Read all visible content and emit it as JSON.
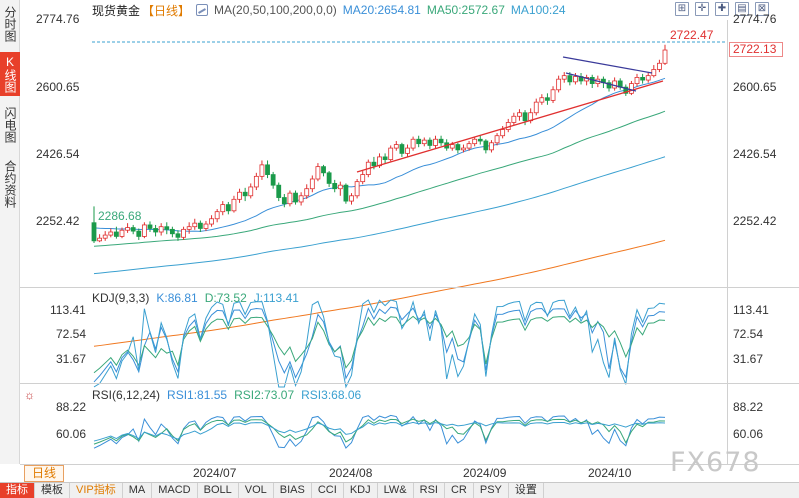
{
  "sidebar": {
    "tabs": [
      {
        "label": "分时图",
        "active": false
      },
      {
        "label": "K线图",
        "active": true
      },
      {
        "label": "闪电图",
        "active": false
      },
      {
        "label": "合约资料",
        "active": false
      }
    ]
  },
  "header": {
    "symbol": "现货黄金",
    "period": "【日线】",
    "ma_params": "MA(20,50,100,200,0,0)",
    "ma20": "MA20:2654.81",
    "ma50": "MA50:2572.67",
    "ma100": "MA100:24"
  },
  "toolbar_buttons": [
    "⊞",
    "✛",
    "✚",
    "▤",
    "⊠"
  ],
  "price_axis": {
    "labels": [
      "2774.76",
      "2600.65",
      "2426.54",
      "2252.42"
    ],
    "current_price": "2722.13",
    "last_label": "2722.47",
    "low_label": "2286.68"
  },
  "kdj": {
    "title": "KDJ(9,3,3)",
    "k": "K:86.81",
    "d": "D:73.52",
    "j": "J:113.41",
    "axis": [
      "113.41",
      "72.54",
      "31.67"
    ]
  },
  "rsi": {
    "title": "RSI(6,12,24)",
    "rsi1": "RSI1:81.55",
    "rsi2": "RSI2:73.07",
    "rsi3": "RSI3:68.06",
    "axis": [
      "88.22",
      "60.06"
    ]
  },
  "dates": [
    "2024/07",
    "2024/08",
    "2024/09",
    "2024/10"
  ],
  "period_tab": "日线",
  "watermark": "FX678",
  "bottom_toolbar": [
    "指标",
    "模板",
    "VIP指标",
    "MA",
    "MACD",
    "BOLL",
    "VOL",
    "BIAS",
    "CCI",
    "KDJ",
    "LW&",
    "RSI",
    "CR",
    "PSY",
    "设置"
  ],
  "colors": {
    "up": "#e03030",
    "down": "#1a9a4a",
    "ma20": "#3a8fd8",
    "ma50": "#3aa87a",
    "ma100": "#3aa0d0",
    "ma200": "#f07820",
    "trendline": "#e03030",
    "channel": "#3a3a9a"
  },
  "chart_data": {
    "type": "candlestick",
    "candles": [
      [
        2331,
        2290,
        2368,
        2285
      ],
      [
        2290,
        2296,
        2305,
        2287
      ],
      [
        2296,
        2303,
        2312,
        2290
      ],
      [
        2303,
        2310,
        2318,
        2298
      ],
      [
        2310,
        2300,
        2322,
        2295
      ],
      [
        2300,
        2314,
        2320,
        2296
      ],
      [
        2314,
        2320,
        2330,
        2308
      ],
      [
        2320,
        2312,
        2326,
        2305
      ],
      [
        2312,
        2300,
        2318,
        2292
      ],
      [
        2300,
        2326,
        2332,
        2296
      ],
      [
        2326,
        2318,
        2334,
        2310
      ],
      [
        2318,
        2310,
        2326,
        2300
      ],
      [
        2310,
        2322,
        2330,
        2302
      ],
      [
        2322,
        2316,
        2332,
        2305
      ],
      [
        2316,
        2306,
        2322,
        2298
      ],
      [
        2306,
        2298,
        2314,
        2290
      ],
      [
        2298,
        2316,
        2322,
        2292
      ],
      [
        2316,
        2322,
        2332,
        2306
      ],
      [
        2322,
        2330,
        2340,
        2315
      ],
      [
        2330,
        2318,
        2336,
        2310
      ],
      [
        2318,
        2328,
        2335,
        2312
      ],
      [
        2328,
        2340,
        2348,
        2322
      ],
      [
        2340,
        2356,
        2362,
        2332
      ],
      [
        2356,
        2372,
        2380,
        2348
      ],
      [
        2372,
        2358,
        2378,
        2350
      ],
      [
        2358,
        2384,
        2392,
        2354
      ],
      [
        2384,
        2400,
        2408,
        2376
      ],
      [
        2400,
        2392,
        2410,
        2380
      ],
      [
        2392,
        2412,
        2420,
        2386
      ],
      [
        2412,
        2436,
        2444,
        2405
      ],
      [
        2436,
        2462,
        2472,
        2428
      ],
      [
        2462,
        2440,
        2472,
        2432
      ],
      [
        2440,
        2416,
        2446,
        2408
      ],
      [
        2416,
        2388,
        2422,
        2380
      ],
      [
        2388,
        2374,
        2396,
        2366
      ],
      [
        2374,
        2398,
        2404,
        2368
      ],
      [
        2398,
        2378,
        2404,
        2372
      ],
      [
        2378,
        2392,
        2400,
        2370
      ],
      [
        2392,
        2408,
        2418,
        2385
      ],
      [
        2408,
        2430,
        2438,
        2400
      ],
      [
        2430,
        2458,
        2466,
        2425
      ],
      [
        2458,
        2444,
        2462,
        2436
      ],
      [
        2444,
        2420,
        2448,
        2412
      ],
      [
        2420,
        2408,
        2428,
        2400
      ],
      [
        2408,
        2416,
        2424,
        2392
      ],
      [
        2416,
        2380,
        2420,
        2374
      ],
      [
        2380,
        2392,
        2398,
        2372
      ],
      [
        2392,
        2424,
        2430,
        2386
      ],
      [
        2424,
        2440,
        2448,
        2418
      ],
      [
        2440,
        2468,
        2474,
        2434
      ],
      [
        2468,
        2460,
        2480,
        2452
      ],
      [
        2460,
        2480,
        2488,
        2455
      ],
      [
        2480,
        2474,
        2488,
        2466
      ],
      [
        2474,
        2500,
        2506,
        2470
      ],
      [
        2500,
        2508,
        2516,
        2494
      ],
      [
        2508,
        2488,
        2512,
        2480
      ],
      [
        2488,
        2500,
        2508,
        2480
      ],
      [
        2500,
        2520,
        2526,
        2494
      ],
      [
        2520,
        2510,
        2528,
        2502
      ],
      [
        2510,
        2518,
        2524,
        2504
      ],
      [
        2518,
        2506,
        2524,
        2498
      ],
      [
        2506,
        2520,
        2528,
        2500
      ],
      [
        2520,
        2512,
        2528,
        2505
      ],
      [
        2512,
        2500,
        2520,
        2494
      ],
      [
        2500,
        2508,
        2514,
        2494
      ],
      [
        2508,
        2496,
        2512,
        2488
      ],
      [
        2496,
        2500,
        2508,
        2490
      ],
      [
        2500,
        2510,
        2516,
        2494
      ],
      [
        2510,
        2520,
        2526,
        2504
      ],
      [
        2520,
        2516,
        2528,
        2508
      ],
      [
        2516,
        2496,
        2520,
        2488
      ],
      [
        2496,
        2512,
        2518,
        2490
      ],
      [
        2512,
        2528,
        2534,
        2506
      ],
      [
        2528,
        2542,
        2550,
        2522
      ],
      [
        2542,
        2558,
        2566,
        2536
      ],
      [
        2558,
        2572,
        2580,
        2552
      ],
      [
        2572,
        2580,
        2588,
        2562
      ],
      [
        2580,
        2562,
        2586,
        2552
      ],
      [
        2562,
        2580,
        2590,
        2556
      ],
      [
        2580,
        2604,
        2612,
        2574
      ],
      [
        2604,
        2614,
        2622,
        2598
      ],
      [
        2614,
        2608,
        2624,
        2598
      ],
      [
        2608,
        2632,
        2640,
        2602
      ],
      [
        2632,
        2656,
        2664,
        2626
      ],
      [
        2656,
        2664,
        2672,
        2648
      ],
      [
        2664,
        2650,
        2672,
        2642
      ],
      [
        2650,
        2662,
        2670,
        2644
      ],
      [
        2662,
        2652,
        2670,
        2644
      ],
      [
        2652,
        2660,
        2666,
        2642
      ],
      [
        2660,
        2646,
        2666,
        2636
      ],
      [
        2646,
        2656,
        2664,
        2638
      ],
      [
        2656,
        2648,
        2662,
        2636
      ],
      [
        2648,
        2636,
        2654,
        2628
      ],
      [
        2636,
        2652,
        2660,
        2630
      ],
      [
        2652,
        2638,
        2658,
        2632
      ],
      [
        2638,
        2624,
        2644,
        2618
      ],
      [
        2624,
        2646,
        2652,
        2620
      ],
      [
        2646,
        2660,
        2668,
        2640
      ],
      [
        2660,
        2654,
        2668,
        2646
      ],
      [
        2654,
        2664,
        2672,
        2648
      ],
      [
        2664,
        2678,
        2688,
        2660
      ],
      [
        2678,
        2692,
        2700,
        2672
      ],
      [
        2692,
        2722,
        2734,
        2688
      ]
    ],
    "x_labels": [
      "2024/07",
      "2024/08",
      "2024/09",
      "2024/10"
    ],
    "ylim": [
      2190,
      2790
    ]
  }
}
